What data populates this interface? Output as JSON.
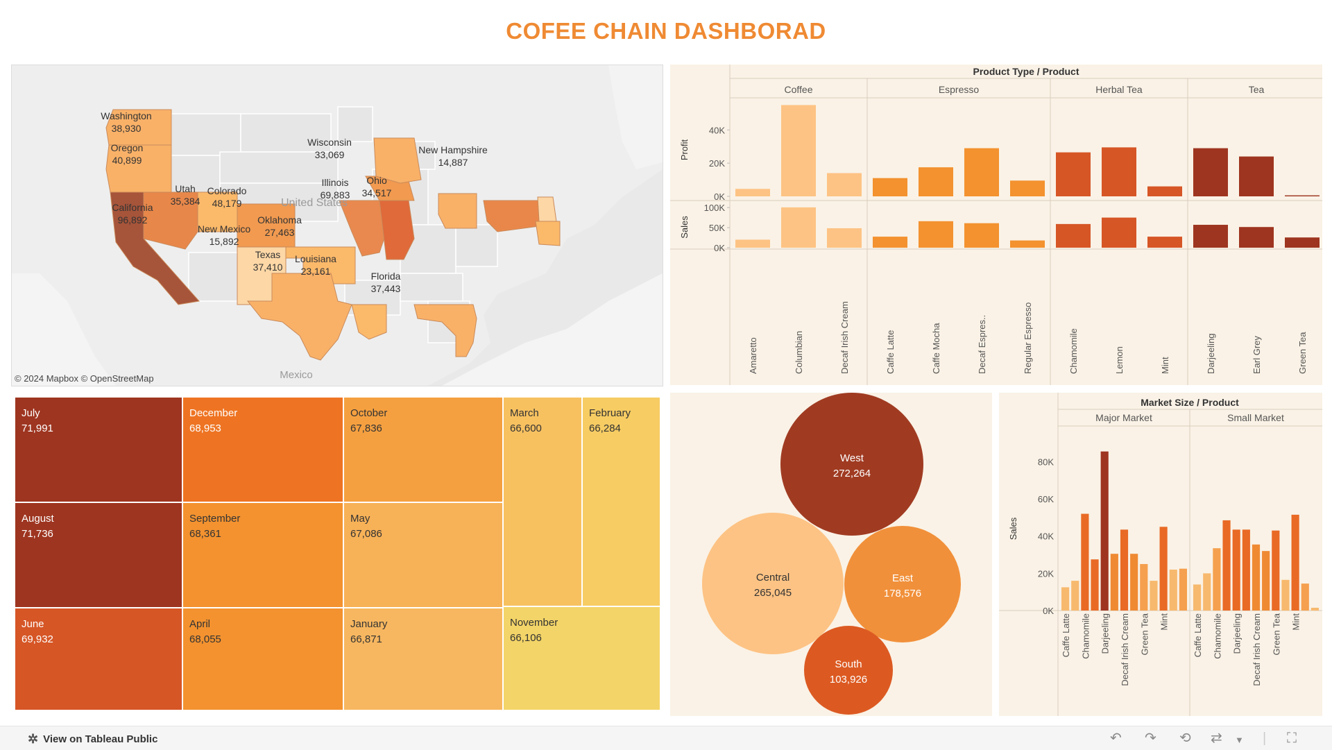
{
  "title": "COFEE CHAIN DASHBORAD",
  "map": {
    "attribution": "© 2024 Mapbox © OpenStreetMap",
    "labels": {
      "country": "United States",
      "neighbor": "Mexico"
    },
    "states": [
      {
        "name": "Washington",
        "value": "38,930"
      },
      {
        "name": "Oregon",
        "value": "40,899"
      },
      {
        "name": "California",
        "value": "96,892"
      },
      {
        "name": "Utah",
        "value": "35,384"
      },
      {
        "name": "Colorado",
        "value": "48,179"
      },
      {
        "name": "New Mexico",
        "value": "15,892"
      },
      {
        "name": "Oklahoma",
        "value": "27,463"
      },
      {
        "name": "Texas",
        "value": "37,410"
      },
      {
        "name": "Louisiana",
        "value": "23,161"
      },
      {
        "name": "Illinois",
        "value": "69,883"
      },
      {
        "name": "Wisconsin",
        "value": "33,069"
      },
      {
        "name": "Ohio",
        "value": "34,517"
      },
      {
        "name": "Florida",
        "value": "37,443"
      },
      {
        "name": "New Hampshire",
        "value": "14,887"
      }
    ]
  },
  "treemap": {
    "cells": [
      {
        "month": "July",
        "value": "71,991"
      },
      {
        "month": "August",
        "value": "71,736"
      },
      {
        "month": "June",
        "value": "69,932"
      },
      {
        "month": "December",
        "value": "68,953"
      },
      {
        "month": "September",
        "value": "68,361"
      },
      {
        "month": "April",
        "value": "68,055"
      },
      {
        "month": "October",
        "value": "67,836"
      },
      {
        "month": "May",
        "value": "67,086"
      },
      {
        "month": "January",
        "value": "66,871"
      },
      {
        "month": "March",
        "value": "66,600"
      },
      {
        "month": "February",
        "value": "66,284"
      },
      {
        "month": "November",
        "value": "66,106"
      }
    ]
  },
  "bubbles": [
    {
      "region": "West",
      "value": "272,264",
      "color": "#a03b22"
    },
    {
      "region": "Central",
      "value": "265,045",
      "color": "#fdc384"
    },
    {
      "region": "East",
      "value": "178,576",
      "color": "#f1903a"
    },
    {
      "region": "South",
      "value": "103,926",
      "color": "#dc5a22"
    }
  ],
  "colors": {
    "coffee": "#fdc384",
    "espresso": "#f3922f",
    "herbal_tea": "#d65626",
    "tea": "#9e3520",
    "title": "#ef8a33"
  },
  "chart_data": [
    {
      "type": "bar",
      "title": "Product Type / Product",
      "groups": [
        {
          "name": "Coffee",
          "products": [
            "Amaretto",
            "Columbian",
            "Decaf Irish Cream"
          ]
        },
        {
          "name": "Espresso",
          "products": [
            "Caffe Latte",
            "Caffe Mocha",
            "Decaf Espres..",
            "Regular Espresso"
          ]
        },
        {
          "name": "Herbal Tea",
          "products": [
            "Chamomile",
            "Lemon",
            "Mint"
          ]
        },
        {
          "name": "Tea",
          "products": [
            "Darjeeling",
            "Earl Grey",
            "Green Tea"
          ]
        }
      ],
      "series": [
        {
          "name": "Profit",
          "values": [
            4500,
            55000,
            14000,
            11000,
            17500,
            29000,
            9500,
            26500,
            29500,
            6000,
            29000,
            24000,
            600
          ],
          "ylim": [
            0,
            56000
          ],
          "ticks": [
            0,
            20000,
            40000
          ],
          "tick_labels": [
            "0K",
            "20K",
            "40K"
          ]
        },
        {
          "name": "Sales",
          "values": [
            20000,
            100500,
            48500,
            27500,
            66000,
            61000,
            18000,
            59000,
            75000,
            27500,
            57000,
            51500,
            25500
          ],
          "ylim": [
            0,
            102000
          ],
          "ticks": [
            0,
            50000,
            100000
          ],
          "tick_labels": [
            "0K",
            "50K",
            "100K"
          ]
        }
      ]
    },
    {
      "type": "treemap",
      "categories": [
        "July",
        "August",
        "June",
        "December",
        "September",
        "April",
        "October",
        "May",
        "January",
        "March",
        "February",
        "November"
      ],
      "values": [
        71991,
        71736,
        69932,
        68953,
        68361,
        68055,
        67836,
        67086,
        66871,
        66600,
        66284,
        66106
      ]
    },
    {
      "type": "bubble",
      "categories": [
        "West",
        "Central",
        "East",
        "South"
      ],
      "values": [
        272264,
        265045,
        178576,
        103926
      ]
    },
    {
      "type": "bar",
      "title": "Market Size / Product",
      "ylabel": "Sales",
      "ylim": [
        0,
        88000
      ],
      "ticks": [
        0,
        20000,
        40000,
        60000,
        80000
      ],
      "tick_labels": [
        "0K",
        "20K",
        "40K",
        "60K",
        "80K"
      ],
      "groups": [
        {
          "name": "Major Market",
          "tick_labels": [
            "Caffe Latte",
            "Chamomile",
            "Darjeeling",
            "Decaf Irish Cream",
            "Green Tea",
            "Mint"
          ],
          "values": [
            12500,
            16000,
            52000,
            27500,
            85500,
            30500,
            43500,
            30500,
            25000,
            16000,
            45000,
            22000,
            22500
          ],
          "colors": [
            "#f7b96e",
            "#f7b96e",
            "#e96a25",
            "#e96a25",
            "#9e3520",
            "#ef8a33",
            "#e96a25",
            "#ef8a33",
            "#f5a04e",
            "#f7b96e",
            "#e96a25",
            "#f7b96e",
            "#f5a04e"
          ]
        },
        {
          "name": "Small Market",
          "tick_labels": [
            "Caffe Latte",
            "Chamomile",
            "Darjeeling",
            "Decaf Irish Cream",
            "Green Tea",
            "Mint"
          ],
          "values": [
            14000,
            20000,
            33500,
            48500,
            43500,
            43500,
            35500,
            32000,
            43000,
            16500,
            51500,
            14500,
            1500
          ],
          "colors": [
            "#f7b96e",
            "#f7b96e",
            "#f5a04e",
            "#e96a25",
            "#e96a25",
            "#e96a25",
            "#ef8a33",
            "#ef8a33",
            "#e96a25",
            "#f7b96e",
            "#e96a25",
            "#f5a04e",
            "#f7b96e"
          ]
        }
      ]
    }
  ],
  "footer": {
    "link": "View on Tableau Public"
  }
}
